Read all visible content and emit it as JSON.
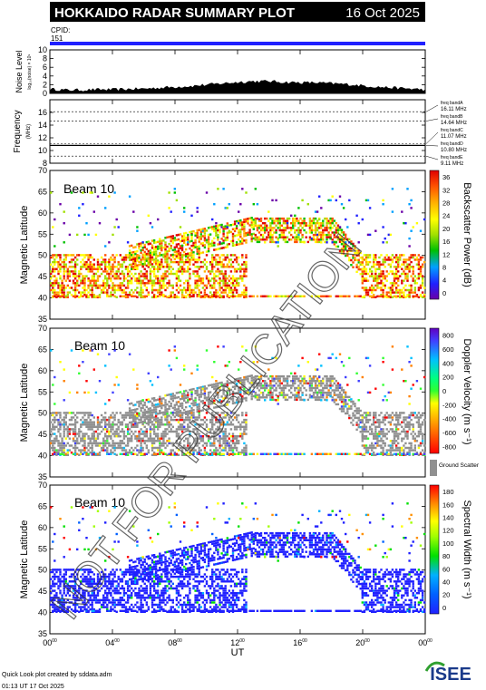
{
  "header": {
    "title": "HOKKAIDO RADAR SUMMARY PLOT",
    "date": "16 Oct 2025",
    "cpid_label": "CPID:",
    "cpid_value": "151"
  },
  "colors": {
    "header_bg": "#000000",
    "header_text": "#ffffff",
    "cpid_bar": "#2020ff",
    "ground_scatter": "#909090",
    "noise_fill": "#000000"
  },
  "chart_data": [
    {
      "type": "area",
      "ylabel": "Noise Level",
      "ylabel_sub": "log₁₀(noise) × 10⁹",
      "ylim": [
        0,
        10
      ],
      "yticks": [
        "0",
        "2",
        "4",
        "6",
        "8",
        "10"
      ],
      "x": [
        0,
        1,
        2,
        3,
        4,
        5,
        6,
        7,
        8,
        9,
        10,
        11,
        12,
        13,
        14,
        15,
        16,
        17,
        18,
        19,
        20,
        21,
        22,
        23,
        24
      ],
      "values": [
        1.0,
        0.8,
        0.8,
        0.9,
        0.9,
        1.0,
        1.1,
        1.3,
        1.5,
        1.7,
        2.0,
        2.3,
        2.6,
        2.8,
        2.8,
        2.6,
        2.5,
        2.5,
        2.3,
        2.1,
        1.8,
        1.5,
        1.3,
        1.1,
        0.9
      ]
    },
    {
      "type": "line",
      "ylabel": "Frequency",
      "ylabel_sub": "(MHz)",
      "ylim": [
        8,
        18
      ],
      "yticks": [
        "8",
        "10",
        "12",
        "14",
        "16"
      ],
      "dashed_lines": [
        16.11,
        14.64,
        11.07,
        10.8,
        9.11
      ],
      "solid_line": 10.8,
      "band_labels": [
        {
          "name": "freq bandA",
          "value": "16.11 MHz"
        },
        {
          "name": "freq bandB",
          "value": "14.64 MHz"
        },
        {
          "name": "freq bandC",
          "value": "11.07 MHz"
        },
        {
          "name": "freq bandD",
          "value": "10.80 MHz"
        },
        {
          "name": "freq bandE",
          "value": "9.11 MHz"
        }
      ]
    },
    {
      "type": "heatmap",
      "beam_label": "Beam 10",
      "ylabel": "Magnetic Latitude",
      "ylim": [
        35,
        70
      ],
      "yticks": [
        "35",
        "40",
        "45",
        "50",
        "55",
        "60",
        "65",
        "70"
      ],
      "colorbar_label": "Backscatter Power (dB)",
      "colorbar_ticks": [
        "0",
        "4",
        "8",
        "12",
        "16",
        "20",
        "24",
        "28",
        "32",
        "36"
      ],
      "colorbar_range": [
        0,
        36
      ]
    },
    {
      "type": "heatmap",
      "beam_label": "Beam 10",
      "ylabel": "Magnetic Latitude",
      "ylim": [
        35,
        70
      ],
      "yticks": [
        "35",
        "40",
        "45",
        "50",
        "55",
        "60",
        "65",
        "70"
      ],
      "colorbar_label": "Doppler Velocity (m s⁻¹)",
      "colorbar_ticks": [
        "-800",
        "-600",
        "-400",
        "-200",
        "0",
        "200",
        "400",
        "600",
        "800"
      ],
      "colorbar_range": [
        -800,
        800
      ],
      "ground_scatter_label": "Ground Scatter"
    },
    {
      "type": "heatmap",
      "beam_label": "Beam 10",
      "ylabel": "Magnetic Latitude",
      "ylim": [
        35,
        70
      ],
      "yticks": [
        "35",
        "40",
        "45",
        "50",
        "55",
        "60",
        "65",
        "70"
      ],
      "colorbar_label": "Spectral Width (m s⁻¹)",
      "colorbar_ticks": [
        "0",
        "20",
        "40",
        "60",
        "80",
        "100",
        "120",
        "140",
        "160",
        "180"
      ],
      "colorbar_range": [
        0,
        180
      ]
    }
  ],
  "x_axis": {
    "label": "UT",
    "range": [
      0,
      24
    ],
    "ticks": [
      {
        "value": 0,
        "hour": "00",
        "min": "00"
      },
      {
        "value": 4,
        "hour": "04",
        "min": "00"
      },
      {
        "value": 8,
        "hour": "08",
        "min": "00"
      },
      {
        "value": 12,
        "hour": "12",
        "min": "00"
      },
      {
        "value": 16,
        "hour": "16",
        "min": "00"
      },
      {
        "value": 20,
        "hour": "20",
        "min": "00"
      },
      {
        "value": 24,
        "hour": "00",
        "min": "00"
      }
    ]
  },
  "footer": {
    "credit": "Quick Look plot created by sddata.adm",
    "timestamp": "01:13 UT 17 Oct 2025",
    "logo": "ISEE"
  },
  "watermark": "NOT FOR PUBLICATION"
}
